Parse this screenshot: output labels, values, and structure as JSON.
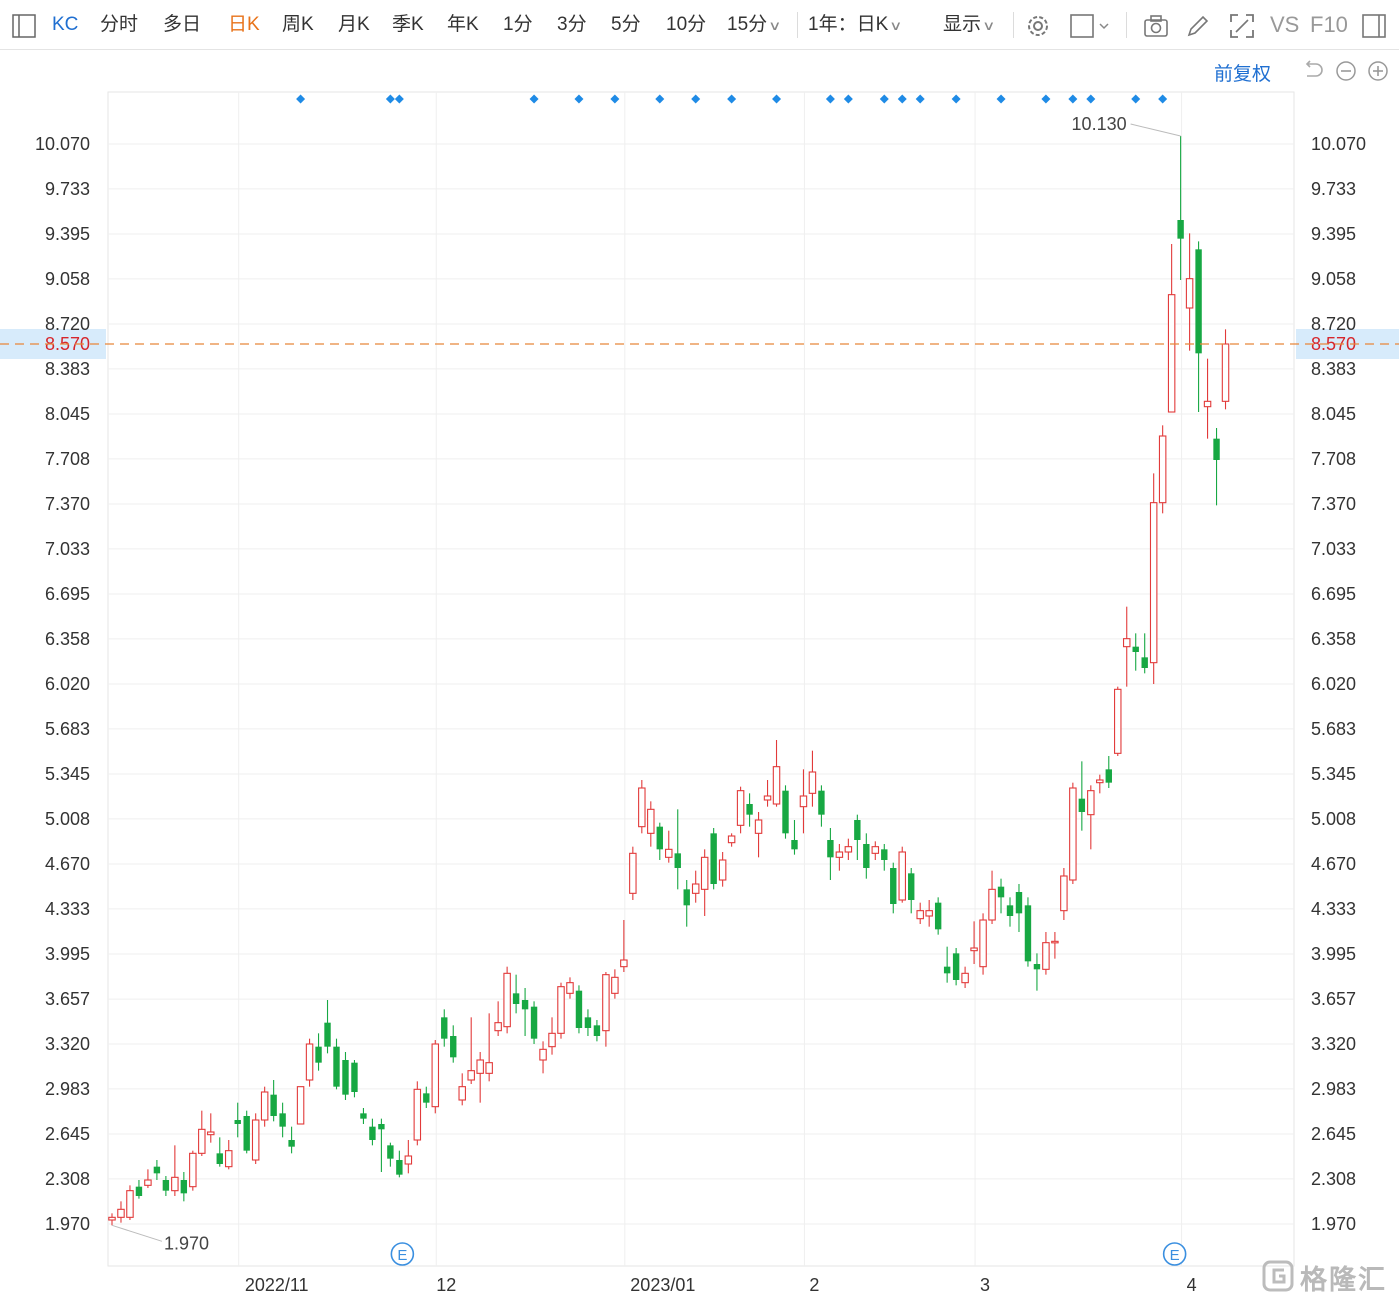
{
  "toolbar": {
    "symbol": "KC",
    "periods": [
      "分时",
      "多日",
      "日K",
      "周K",
      "月K",
      "季K",
      "年K",
      "1分",
      "3分",
      "5分",
      "10分",
      "15分"
    ],
    "active_period": "日K",
    "range_select": "1年：日K",
    "display_label": "显示",
    "vs_label": "VS",
    "f10_label": "F10",
    "icons": [
      "sidebar-toggle-icon",
      "settings-gear-icon",
      "checkbox-icon",
      "camera-icon",
      "pencil-icon",
      "fullscreen-icon",
      "panel-icon"
    ]
  },
  "subbar": {
    "adjust_label": "前复权",
    "icons": [
      "undo-icon",
      "zoom-out-icon",
      "zoom-in-icon"
    ]
  },
  "colors": {
    "up": "#e23a3a",
    "down": "#17a843",
    "current_line": "#e8873a",
    "current_bg": "#d7ebfb",
    "event_marker": "#1f8be6",
    "active_tab": "#e8731a",
    "link": "#1f6fd1"
  },
  "chart_data": {
    "type": "candlestick",
    "ylim": [
      1.9,
      10.4
    ],
    "y_ticks": [
      "10.070",
      "9.733",
      "9.395",
      "9.058",
      "8.720",
      "8.383",
      "8.045",
      "7.708",
      "7.370",
      "7.033",
      "6.695",
      "6.358",
      "6.020",
      "5.683",
      "5.345",
      "5.008",
      "4.670",
      "4.333",
      "3.995",
      "3.657",
      "3.320",
      "2.983",
      "2.645",
      "2.308",
      "1.970"
    ],
    "current_price": "8.570",
    "max_label": "10.130",
    "min_label": "1.970",
    "x_labels": [
      {
        "label": "2022/11",
        "index": 15
      },
      {
        "label": "12",
        "index": 37
      },
      {
        "label": "2023/01",
        "index": 58
      },
      {
        "label": "2",
        "index": 78
      },
      {
        "label": "3",
        "index": 97
      },
      {
        "label": "4",
        "index": 120
      }
    ],
    "earnings_label": "E",
    "earnings_at": [
      32,
      118
    ],
    "event_markers": [
      21,
      31,
      32,
      47,
      52,
      56,
      61,
      65,
      69,
      74,
      80,
      82,
      86,
      88,
      90,
      94,
      99,
      104,
      107,
      109,
      114,
      117
    ],
    "candles": [
      [
        2.0,
        2.02,
        1.96,
        2.05
      ],
      [
        2.02,
        2.08,
        1.98,
        2.14
      ],
      [
        2.02,
        2.22,
        2.0,
        2.26
      ],
      [
        2.25,
        2.18,
        2.16,
        2.3
      ],
      [
        2.26,
        2.3,
        2.24,
        2.38
      ],
      [
        2.4,
        2.35,
        2.3,
        2.45
      ],
      [
        2.3,
        2.22,
        2.18,
        2.33
      ],
      [
        2.22,
        2.32,
        2.18,
        2.56
      ],
      [
        2.3,
        2.2,
        2.14,
        2.36
      ],
      [
        2.25,
        2.5,
        2.22,
        2.52
      ],
      [
        2.5,
        2.68,
        2.48,
        2.82
      ],
      [
        2.64,
        2.66,
        2.58,
        2.8
      ],
      [
        2.5,
        2.42,
        2.4,
        2.62
      ],
      [
        2.4,
        2.52,
        2.38,
        2.6
      ],
      [
        2.75,
        2.72,
        2.62,
        2.88
      ],
      [
        2.78,
        2.52,
        2.5,
        2.82
      ],
      [
        2.45,
        2.75,
        2.42,
        2.8
      ],
      [
        2.75,
        2.96,
        2.7,
        3.0
      ],
      [
        2.94,
        2.78,
        2.74,
        3.05
      ],
      [
        2.8,
        2.7,
        2.62,
        2.88
      ],
      [
        2.6,
        2.55,
        2.5,
        2.7
      ],
      [
        2.72,
        3.0,
        2.72,
        3.0
      ],
      [
        3.05,
        3.32,
        3.0,
        3.36
      ],
      [
        3.3,
        3.18,
        3.12,
        3.4
      ],
      [
        3.48,
        3.3,
        3.25,
        3.65
      ],
      [
        3.3,
        3.0,
        2.98,
        3.36
      ],
      [
        3.2,
        2.94,
        2.9,
        3.26
      ],
      [
        3.18,
        2.96,
        2.92,
        3.2
      ],
      [
        2.8,
        2.76,
        2.72,
        2.84
      ],
      [
        2.7,
        2.6,
        2.56,
        2.76
      ],
      [
        2.72,
        2.68,
        2.36,
        2.76
      ],
      [
        2.56,
        2.46,
        2.4,
        2.58
      ],
      [
        2.45,
        2.34,
        2.32,
        2.52
      ],
      [
        2.42,
        2.48,
        2.35,
        2.6
      ],
      [
        2.6,
        2.98,
        2.56,
        3.04
      ],
      [
        2.95,
        2.88,
        2.84,
        3.0
      ],
      [
        2.85,
        3.32,
        2.8,
        3.35
      ],
      [
        3.52,
        3.36,
        3.3,
        3.58
      ],
      [
        3.38,
        3.22,
        3.18,
        3.46
      ],
      [
        2.9,
        3.0,
        2.86,
        3.1
      ],
      [
        3.05,
        3.12,
        3.02,
        3.52
      ],
      [
        3.1,
        3.2,
        2.88,
        3.26
      ],
      [
        3.1,
        3.18,
        3.04,
        3.55
      ],
      [
        3.42,
        3.48,
        3.38,
        3.64
      ],
      [
        3.45,
        3.85,
        3.4,
        3.9
      ],
      [
        3.7,
        3.62,
        3.55,
        3.84
      ],
      [
        3.65,
        3.58,
        3.38,
        3.74
      ],
      [
        3.6,
        3.36,
        3.32,
        3.64
      ],
      [
        3.2,
        3.28,
        3.1,
        3.34
      ],
      [
        3.3,
        3.4,
        3.24,
        3.52
      ],
      [
        3.4,
        3.75,
        3.36,
        3.78
      ],
      [
        3.7,
        3.78,
        3.66,
        3.82
      ],
      [
        3.72,
        3.44,
        3.4,
        3.76
      ],
      [
        3.52,
        3.44,
        3.38,
        3.58
      ],
      [
        3.46,
        3.38,
        3.34,
        3.5
      ],
      [
        3.42,
        3.84,
        3.3,
        3.86
      ],
      [
        3.7,
        3.82,
        3.66,
        3.88
      ],
      [
        3.9,
        3.95,
        3.86,
        4.25
      ],
      [
        4.45,
        4.75,
        4.4,
        4.8
      ],
      [
        4.95,
        5.24,
        4.9,
        5.3
      ],
      [
        4.9,
        5.08,
        4.8,
        5.14
      ],
      [
        4.95,
        4.78,
        4.7,
        4.98
      ],
      [
        4.72,
        4.78,
        4.68,
        4.92
      ],
      [
        4.75,
        4.64,
        4.48,
        5.08
      ],
      [
        4.48,
        4.36,
        4.2,
        4.55
      ],
      [
        4.45,
        4.52,
        4.38,
        4.62
      ],
      [
        4.48,
        4.72,
        4.28,
        4.78
      ],
      [
        4.9,
        4.52,
        4.48,
        4.94
      ],
      [
        4.55,
        4.7,
        4.5,
        4.76
      ],
      [
        4.83,
        4.88,
        4.8,
        4.9
      ],
      [
        4.96,
        5.22,
        4.9,
        5.25
      ],
      [
        5.12,
        5.04,
        4.95,
        5.2
      ],
      [
        4.9,
        5.0,
        4.72,
        5.06
      ],
      [
        5.15,
        5.18,
        5.1,
        5.3
      ],
      [
        5.12,
        5.4,
        5.1,
        5.6
      ],
      [
        5.22,
        4.9,
        4.86,
        5.26
      ],
      [
        4.85,
        4.78,
        4.74,
        5.0
      ],
      [
        5.1,
        5.18,
        4.9,
        5.38
      ],
      [
        5.2,
        5.36,
        5.1,
        5.52
      ],
      [
        5.22,
        5.04,
        4.95,
        5.26
      ],
      [
        4.85,
        4.72,
        4.55,
        4.94
      ],
      [
        4.72,
        4.76,
        4.62,
        4.82
      ],
      [
        4.76,
        4.8,
        4.7,
        4.86
      ],
      [
        5.0,
        4.85,
        4.7,
        5.04
      ],
      [
        4.82,
        4.64,
        4.56,
        4.9
      ],
      [
        4.75,
        4.8,
        4.7,
        4.84
      ],
      [
        4.78,
        4.7,
        4.62,
        4.82
      ],
      [
        4.64,
        4.37,
        4.3,
        4.68
      ],
      [
        4.4,
        4.76,
        4.38,
        4.8
      ],
      [
        4.6,
        4.4,
        4.3,
        4.64
      ],
      [
        4.26,
        4.32,
        4.22,
        4.38
      ],
      [
        4.28,
        4.32,
        4.2,
        4.4
      ],
      [
        4.38,
        4.18,
        4.14,
        4.42
      ],
      [
        3.9,
        3.85,
        3.78,
        4.05
      ],
      [
        4.0,
        3.8,
        3.76,
        4.04
      ],
      [
        3.78,
        3.85,
        3.74,
        3.9
      ],
      [
        4.02,
        4.04,
        3.92,
        4.24
      ],
      [
        3.9,
        4.25,
        3.84,
        4.3
      ],
      [
        4.25,
        4.48,
        4.22,
        4.62
      ],
      [
        4.5,
        4.42,
        4.3,
        4.56
      ],
      [
        4.36,
        4.28,
        4.2,
        4.42
      ],
      [
        4.46,
        4.3,
        4.16,
        4.52
      ],
      [
        4.36,
        3.94,
        3.9,
        4.42
      ],
      [
        3.92,
        3.88,
        3.72,
        4.0
      ],
      [
        3.88,
        4.08,
        3.84,
        4.16
      ],
      [
        4.08,
        4.09,
        3.96,
        4.16
      ],
      [
        4.32,
        4.58,
        4.25,
        4.64
      ],
      [
        4.55,
        5.24,
        4.52,
        5.28
      ],
      [
        5.16,
        5.06,
        4.92,
        5.44
      ],
      [
        5.04,
        5.22,
        4.78,
        5.26
      ],
      [
        5.28,
        5.3,
        5.2,
        5.34
      ],
      [
        5.38,
        5.28,
        5.24,
        5.48
      ],
      [
        5.5,
        5.98,
        5.48,
        6.0
      ],
      [
        6.3,
        6.36,
        6.0,
        6.6
      ],
      [
        6.3,
        6.26,
        6.12,
        6.4
      ],
      [
        6.22,
        6.14,
        6.1,
        6.4
      ],
      [
        6.18,
        7.38,
        6.02,
        7.6
      ],
      [
        7.38,
        7.88,
        7.3,
        7.96
      ],
      [
        8.06,
        8.94,
        8.06,
        9.32
      ],
      [
        9.5,
        9.36,
        9.05,
        10.13
      ],
      [
        8.84,
        9.06,
        8.52,
        9.4
      ],
      [
        9.28,
        8.5,
        8.06,
        9.34
      ],
      [
        8.1,
        8.14,
        7.86,
        8.46
      ],
      [
        7.86,
        7.7,
        7.36,
        7.94
      ],
      [
        8.14,
        8.57,
        8.08,
        8.68
      ]
    ]
  },
  "watermark": {
    "text": "格隆汇",
    "logo_icon": "gelonghui-logo-icon"
  }
}
